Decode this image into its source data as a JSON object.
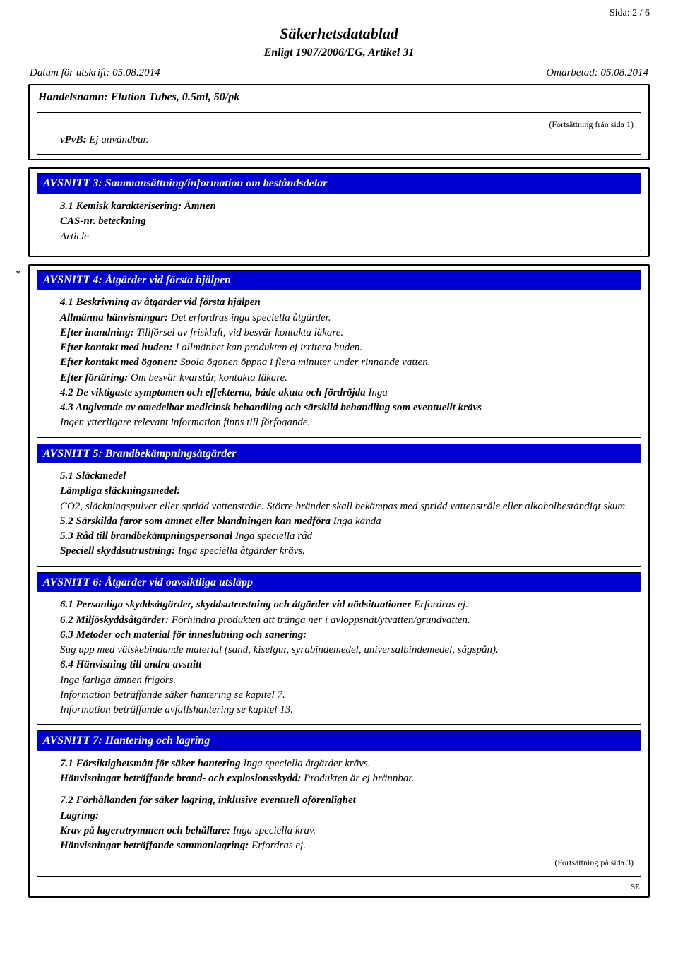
{
  "page_number": "Sida: 2 / 6",
  "title": "Säkerhetsdatablad",
  "subtitle": "Enligt 1907/2006/EG, Artikel 31",
  "date_left_label": "Datum för utskrift:",
  "date_left_value": "05.08.2014",
  "date_right_label": "Omarbetad:",
  "date_right_value": "05.08.2014",
  "product_label": "Handelsnamn:",
  "product_value": "Elution Tubes, 0.5ml, 50/pk",
  "cont_from": "(Fortsättning från sida 1)",
  "vpvb_label": "vPvB:",
  "vpvb_value": "Ej användbar.",
  "s3": {
    "header": "AVSNITT 3: Sammansättning/information om beståndsdelar",
    "l1": "3.1 Kemisk karakterisering: Ämnen",
    "l2": "CAS-nr. beteckning",
    "l3": "Article"
  },
  "s4": {
    "star": "*",
    "header": "AVSNITT 4: Åtgärder vid första hjälpen",
    "l1": "4.1 Beskrivning av åtgärder vid första hjälpen",
    "l2a": "Allmänna hänvisningar:",
    "l2b": "Det erfordras inga speciella åtgärder.",
    "l3a": "Efter inandning:",
    "l3b": "Tillförsel av friskluft, vid besvär kontakta läkare.",
    "l4a": "Efter kontakt med huden:",
    "l4b": "I allmänhet kan produkten ej irritera huden.",
    "l5a": "Efter kontakt med ögonen:",
    "l5b": "Spola ögonen öppna i flera minuter under rinnande vatten.",
    "l6a": "Efter förtäring:",
    "l6b": "Om besvär kvarstår, kontakta läkare.",
    "l7a": "4.2 De viktigaste symptomen och effekterna, både akuta och fördröjda",
    "l7b": "Inga",
    "l8": "4.3 Angivande av omedelbar medicinsk behandling och särskild behandling som eventuellt krävs",
    "l9": "Ingen ytterligare relevant information finns till förfogande."
  },
  "s5": {
    "header": "AVSNITT 5: Brandbekämpningsåtgärder",
    "l1": "5.1 Släckmedel",
    "l2": "Lämpliga släckningsmedel:",
    "l3": "CO2, släckningspulver eller spridd vattenstråle. Större bränder skall bekämpas med spridd vattenstråle eller alkoholbeständigt skum.",
    "l4a": "5.2 Särskilda faror som ämnet eller blandningen kan medföra",
    "l4b": "Inga kända",
    "l5a": "5.3 Råd till brandbekämpningspersonal",
    "l5b": "Inga speciella råd",
    "l6a": "Speciell skyddsutrustning:",
    "l6b": "Inga speciella åtgärder krävs."
  },
  "s6": {
    "header": "AVSNITT 6: Åtgärder vid oavsiktliga utsläpp",
    "l1a": "6.1 Personliga skyddsåtgärder, skyddsutrustning och åtgärder vid nödsituationer",
    "l1b": "Erfordras ej.",
    "l2a": "6.2 Miljöskyddsåtgärder:",
    "l2b": "Förhindra produkten att tränga ner i avloppsnät/ytvatten/grundvatten.",
    "l3": "6.3 Metoder och material för inneslutning och sanering:",
    "l4": "Sug upp med vätskebindande material (sand, kiselgur, syrabindemedel, universalbindemedel, sågspån).",
    "l5": "6.4 Hänvisning till andra avsnitt",
    "l6": "Inga farliga ämnen frigörs.",
    "l7": "Information beträffande säker hantering se kapitel 7.",
    "l8": "Information beträffande avfallshantering se kapitel 13."
  },
  "s7": {
    "header": "AVSNITT 7: Hantering och lagring",
    "l1a": "7.1 Försiktighetsmått för säker hantering",
    "l1b": "Inga speciella åtgärder krävs.",
    "l2a": "Hänvisningar beträffande brand- och explosionsskydd:",
    "l2b": "Produkten är ej brännbar.",
    "l3": "7.2 Förhållanden för säker lagring, inklusive eventuell oförenlighet",
    "l4": "Lagring:",
    "l5a": "Krav på lagerutrymmen och behållare:",
    "l5b": "Inga speciella krav.",
    "l6a": "Hänvisningar beträffande sammanlagring:",
    "l6b": "Erfordras ej."
  },
  "cont_next": "(Fortsättning på sida 3)",
  "locale": "SE"
}
